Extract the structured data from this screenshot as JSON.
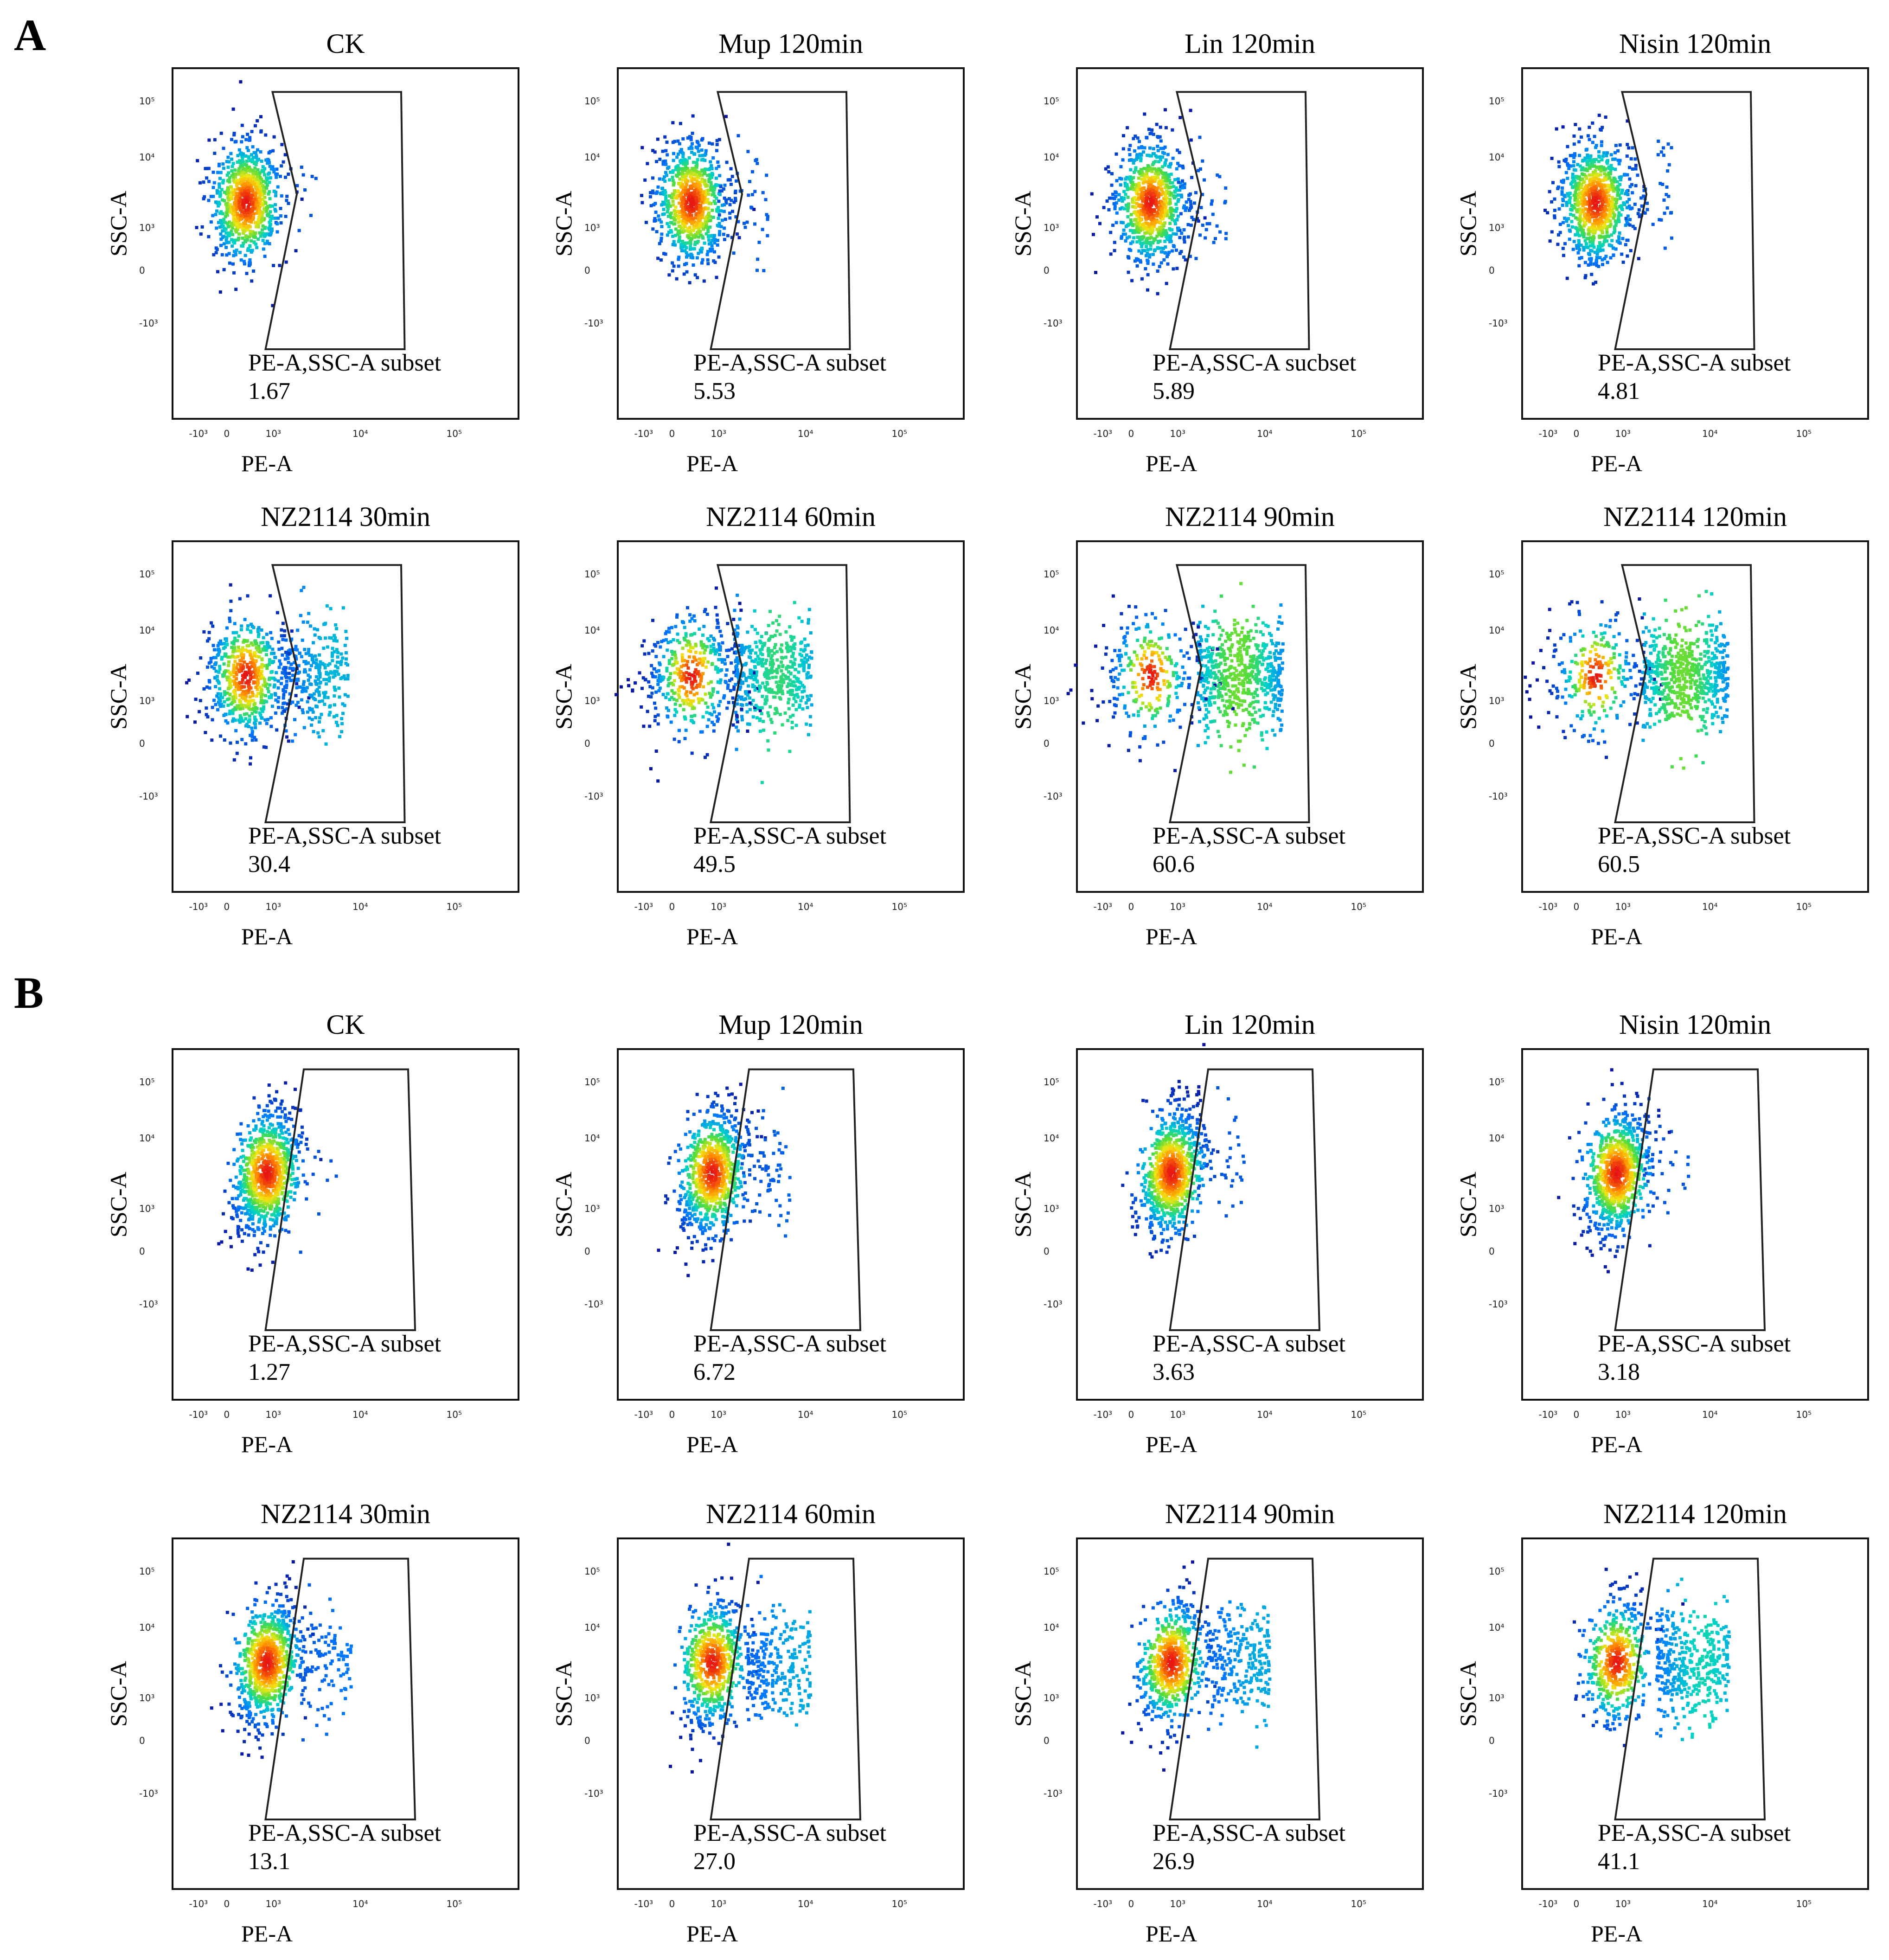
{
  "figure": {
    "section_labels": [
      "A",
      "B"
    ],
    "axis_x_label": "PE-A",
    "axis_y_label": "SSC-A",
    "x_ticks": [
      "-10³",
      "0",
      "10³",
      "10⁴",
      "10⁵"
    ],
    "y_ticks": [
      "10⁵",
      "10⁴",
      "10³",
      "0",
      "-10³"
    ]
  },
  "chart_data": [
    {
      "type": "scatter",
      "section": "A",
      "panels": [
        {
          "title": "CK",
          "gate_label": "PE-A,SSC-A subset",
          "value": "1.67"
        },
        {
          "title": "Mup 120min",
          "gate_label": "PE-A,SSC-A subset",
          "value": "5.53"
        },
        {
          "title": "Lin 120min",
          "gate_label": "PE-A,SSC-A sucbset",
          "value": "5.89"
        },
        {
          "title": "Nisin 120min",
          "gate_label": "PE-A,SSC-A subset",
          "value": "4.81"
        },
        {
          "title": "NZ2114 30min",
          "gate_label": "PE-A,SSC-A subset",
          "value": "30.4"
        },
        {
          "title": "NZ2114 60min",
          "gate_label": "PE-A,SSC-A subset",
          "value": "49.5"
        },
        {
          "title": "NZ2114 90min",
          "gate_label": "PE-A,SSC-A subset",
          "value": "60.6"
        },
        {
          "title": "NZ2114 120min",
          "gate_label": "PE-A,SSC-A subset",
          "value": "60.5"
        }
      ]
    },
    {
      "type": "scatter",
      "section": "B",
      "panels": [
        {
          "title": "CK",
          "gate_label": "PE-A,SSC-A subset",
          "value": "1.27"
        },
        {
          "title": "Mup 120min",
          "gate_label": "PE-A,SSC-A subset",
          "value": "6.72"
        },
        {
          "title": "Lin 120min",
          "gate_label": "PE-A,SSC-A subset",
          "value": "3.63"
        },
        {
          "title": "Nisin 120min",
          "gate_label": "PE-A,SSC-A subset",
          "value": "3.18"
        },
        {
          "title": "NZ2114 30min",
          "gate_label": "PE-A,SSC-A subset",
          "value": "13.1"
        },
        {
          "title": "NZ2114 60min",
          "gate_label": "PE-A,SSC-A subset",
          "value": "27.0"
        },
        {
          "title": "NZ2114 90min",
          "gate_label": "PE-A,SSC-A subset",
          "value": "26.9"
        },
        {
          "title": "NZ2114 120min",
          "gate_label": "PE-A,SSC-A subset",
          "value": "41.1"
        }
      ]
    }
  ]
}
